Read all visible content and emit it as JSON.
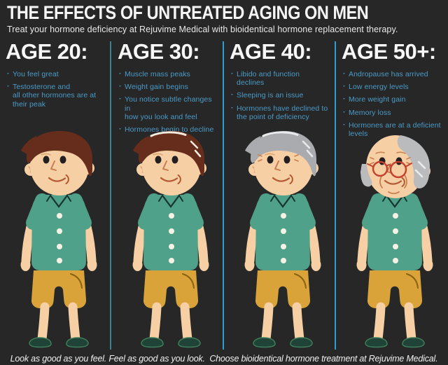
{
  "colors": {
    "background": "#272727",
    "heading_text": "#f5f5f5",
    "bullet_text": "#4a9bc8",
    "divider_teal": "#3e8191",
    "divider_blue": "#2e9fd4"
  },
  "header": {
    "title": "THE EFFECTS OF UNTREATED AGING ON MEN",
    "subtitle": "Treat your hormone deficiency at Rejuvime Medical with bioidentical hormone replacement therapy."
  },
  "columns": [
    {
      "header": "AGE 20:",
      "bullets": [
        "You feel great",
        "Testosterone and\nall other hormones are at\ntheir peak"
      ],
      "figure": {
        "label": "man-age-20",
        "skin": "#f6cfa4",
        "shirt": "#4fa189",
        "shorts": "#d9a339",
        "shoe": "#1f4437",
        "shoe_outline": "#3e7d5b",
        "hair": "#672d1c",
        "highlight_color": "#f2ebe0",
        "style": "full",
        "highlights": false,
        "glasses": "",
        "wrinkles": "none",
        "head_drop": 0
      }
    },
    {
      "header": "AGE 30:",
      "bullets": [
        "Muscle mass peaks",
        "Weight gain begins",
        "You notice subtle changes in\nhow you look and feel",
        "Hormones begin to decline"
      ],
      "figure": {
        "label": "man-age-30",
        "skin": "#f6cfa4",
        "shirt": "#4fa189",
        "shorts": "#d9a339",
        "shoe": "#1f4437",
        "shoe_outline": "#3e7d5b",
        "hair": "#672d1c",
        "highlight_color": "#f2ebe0",
        "style": "full",
        "highlights": true,
        "glasses": "",
        "wrinkles": "none",
        "head_drop": 0
      }
    },
    {
      "header": "AGE 40:",
      "bullets": [
        "Libido and function declines",
        "Sleeping is an issue",
        "Hormones have declined to\nthe point of deficiency"
      ],
      "figure": {
        "label": "man-age-40",
        "skin": "#f6cfa4",
        "shirt": "#4fa189",
        "shorts": "#d9a339",
        "shoe": "#1f4437",
        "shoe_outline": "#3e7d5b",
        "hair": "#a9abae",
        "highlight_color": "#e9eaeb",
        "style": "full",
        "highlights": true,
        "glasses": "",
        "wrinkles": "light",
        "head_drop": 0
      }
    },
    {
      "header": "AGE 50+:",
      "bullets": [
        "Andropause has arrived",
        "Low energy levels",
        "More weight gain",
        "Memory loss",
        "Hormones are at a deficient\nlevels"
      ],
      "figure": {
        "label": "man-age-50",
        "skin": "#f6cfa4",
        "shirt": "#4fa189",
        "shorts": "#d9a339",
        "shoe": "#1f4437",
        "shoe_outline": "#3e7d5b",
        "hair": "#b9bbbd",
        "highlight_color": "#ececec",
        "style": "bald",
        "highlights": true,
        "glasses": "#c4402e",
        "wrinkles": "heavy",
        "head_drop": 4
      }
    }
  ],
  "footer": {
    "text": "Look as good as you feel. Feel as good as you look.  Choose bioidentical hormone treatment at Rejuvime Medical."
  }
}
